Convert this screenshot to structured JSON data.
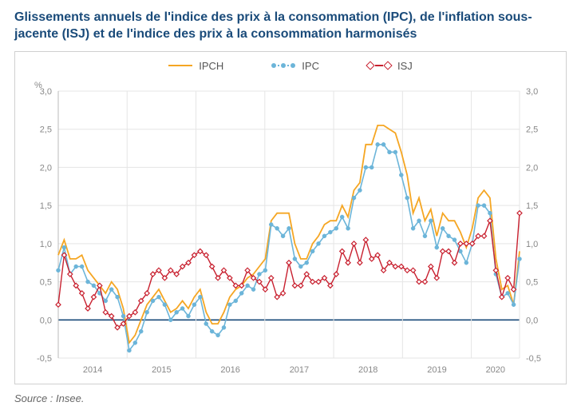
{
  "title": "Glissements annuels de l'indice des prix à la consommation (IPC), de l'inflation sous-jacente (ISJ) et de l'indice des prix à la consommation harmonisés",
  "source": "Source : Insee.",
  "chart": {
    "type": "line",
    "unit_label": "%",
    "background_color": "#ffffff",
    "border_color": "#d0d0d0",
    "grid_color": "#e5e5e5",
    "axis_color": "#bbbbbb",
    "zero_line_color": "#1a4b7a",
    "x": {
      "start": 2014.0,
      "end": 2020.7,
      "tick_years": [
        2014,
        2015,
        2016,
        2017,
        2018,
        2019,
        2020
      ]
    },
    "y": {
      "min": -0.5,
      "max": 3.0,
      "ticks": [
        -0.5,
        0.0,
        0.5,
        1.0,
        1.5,
        2.0,
        2.5,
        3.0
      ],
      "tick_labels": [
        "-0,5",
        "0,0",
        "0,5",
        "1,0",
        "1,5",
        "2,0",
        "2,5",
        "3,0"
      ]
    },
    "legend": [
      {
        "key": "ipch",
        "label": "IPCH"
      },
      {
        "key": "ipc",
        "label": "IPC"
      },
      {
        "key": "isj",
        "label": "ISJ"
      }
    ],
    "series": {
      "ipch": {
        "label": "IPCH",
        "color": "#f5a623",
        "marker": "none",
        "line_width": 1.8,
        "data": [
          0.85,
          1.05,
          0.8,
          0.8,
          0.85,
          0.65,
          0.55,
          0.45,
          0.35,
          0.5,
          0.4,
          0.15,
          -0.3,
          -0.2,
          0.0,
          0.2,
          0.3,
          0.4,
          0.25,
          0.1,
          0.15,
          0.25,
          0.15,
          0.3,
          0.4,
          0.1,
          -0.05,
          -0.05,
          0.1,
          0.3,
          0.4,
          0.45,
          0.55,
          0.6,
          0.7,
          0.8,
          1.3,
          1.4,
          1.4,
          1.4,
          1.0,
          0.8,
          0.8,
          1.0,
          1.1,
          1.25,
          1.3,
          1.3,
          1.5,
          1.35,
          1.7,
          1.8,
          2.3,
          2.3,
          2.55,
          2.55,
          2.5,
          2.45,
          2.2,
          1.9,
          1.4,
          1.6,
          1.3,
          1.45,
          1.1,
          1.4,
          1.3,
          1.3,
          1.15,
          0.95,
          1.2,
          1.6,
          1.7,
          1.6,
          0.8,
          0.4,
          0.45,
          0.2,
          0.9
        ]
      },
      "ipc": {
        "label": "IPC",
        "color": "#6cb5d9",
        "marker": "circle",
        "marker_fill": "#6cb5d9",
        "marker_size": 2.5,
        "line_width": 1.6,
        "data": [
          0.65,
          0.95,
          0.6,
          0.7,
          0.7,
          0.5,
          0.45,
          0.35,
          0.25,
          0.4,
          0.3,
          0.05,
          -0.4,
          -0.3,
          -0.15,
          0.1,
          0.25,
          0.3,
          0.2,
          0.0,
          0.1,
          0.15,
          0.05,
          0.2,
          0.3,
          -0.05,
          -0.15,
          -0.2,
          -0.1,
          0.2,
          0.25,
          0.35,
          0.45,
          0.4,
          0.6,
          0.65,
          1.25,
          1.2,
          1.1,
          1.2,
          0.8,
          0.7,
          0.75,
          0.9,
          1.0,
          1.1,
          1.15,
          1.2,
          1.35,
          1.2,
          1.6,
          1.7,
          2.0,
          2.0,
          2.3,
          2.3,
          2.2,
          2.2,
          1.9,
          1.6,
          1.2,
          1.3,
          1.1,
          1.3,
          0.95,
          1.2,
          1.1,
          1.05,
          0.9,
          0.75,
          1.0,
          1.5,
          1.5,
          1.4,
          0.6,
          0.3,
          0.35,
          0.2,
          0.8
        ]
      },
      "isj": {
        "label": "ISJ",
        "color": "#c8202f",
        "marker": "diamond",
        "marker_fill": "#ffffff",
        "marker_size": 3.0,
        "line_width": 1.4,
        "data": [
          0.2,
          0.85,
          0.6,
          0.45,
          0.35,
          0.15,
          0.3,
          0.45,
          0.1,
          0.05,
          -0.1,
          -0.05,
          0.05,
          0.1,
          0.25,
          0.35,
          0.6,
          0.65,
          0.55,
          0.65,
          0.6,
          0.7,
          0.75,
          0.85,
          0.9,
          0.85,
          0.7,
          0.55,
          0.65,
          0.55,
          0.45,
          0.45,
          0.65,
          0.55,
          0.5,
          0.4,
          0.55,
          0.3,
          0.35,
          0.75,
          0.45,
          0.45,
          0.6,
          0.5,
          0.5,
          0.55,
          0.45,
          0.6,
          0.9,
          0.75,
          1.0,
          0.75,
          1.05,
          0.8,
          0.85,
          0.65,
          0.75,
          0.7,
          0.7,
          0.65,
          0.65,
          0.5,
          0.5,
          0.7,
          0.55,
          0.9,
          0.9,
          0.75,
          1.0,
          1.0,
          1.0,
          1.1,
          1.1,
          1.3,
          0.65,
          0.3,
          0.55,
          0.4,
          1.4
        ]
      }
    },
    "label_fontsize": 11,
    "legend_fontsize": 13,
    "label_color": "#888888"
  }
}
